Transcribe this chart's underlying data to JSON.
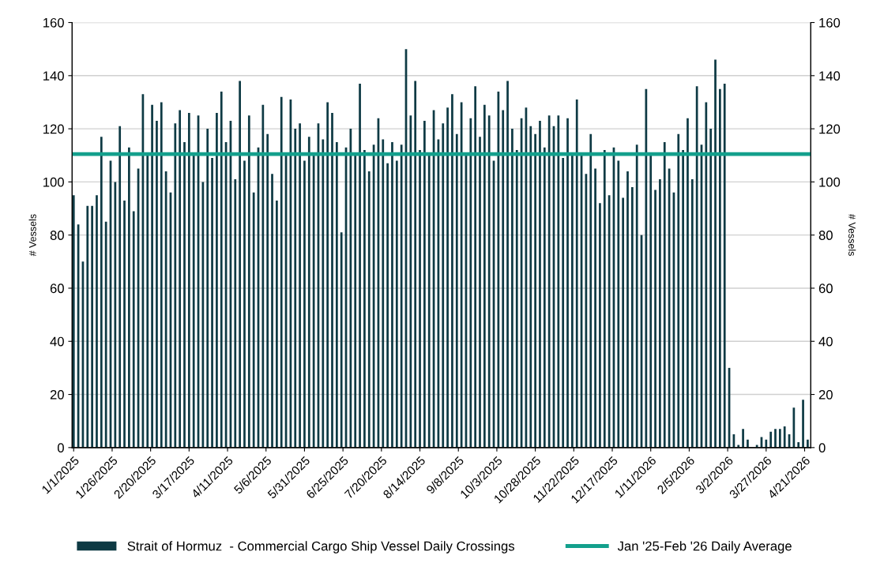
{
  "chart_data": {
    "type": "bar",
    "ylabel": "# Vessels",
    "y2label": "# Vessels",
    "x": [
      "2025-01-01",
      "2025-01-04",
      "2025-01-07",
      "2025-01-10",
      "2025-01-13",
      "2025-01-16",
      "2025-01-19",
      "2025-01-22",
      "2025-01-25",
      "2025-01-28",
      "2025-01-31",
      "2025-02-03",
      "2025-02-06",
      "2025-02-09",
      "2025-02-12",
      "2025-02-15",
      "2025-02-18",
      "2025-02-21",
      "2025-02-24",
      "2025-02-27",
      "2025-03-02",
      "2025-03-05",
      "2025-03-08",
      "2025-03-11",
      "2025-03-14",
      "2025-03-17",
      "2025-03-20",
      "2025-03-23",
      "2025-03-26",
      "2025-03-29",
      "2025-04-01",
      "2025-04-04",
      "2025-04-07",
      "2025-04-10",
      "2025-04-13",
      "2025-04-16",
      "2025-04-19",
      "2025-04-22",
      "2025-04-25",
      "2025-04-28",
      "2025-05-01",
      "2025-05-04",
      "2025-05-07",
      "2025-05-10",
      "2025-05-13",
      "2025-05-16",
      "2025-05-19",
      "2025-05-22",
      "2025-05-25",
      "2025-05-28",
      "2025-05-31",
      "2025-06-03",
      "2025-06-06",
      "2025-06-09",
      "2025-06-12",
      "2025-06-15",
      "2025-06-18",
      "2025-06-21",
      "2025-06-24",
      "2025-06-27",
      "2025-06-30",
      "2025-07-03",
      "2025-07-06",
      "2025-07-09",
      "2025-07-12",
      "2025-07-15",
      "2025-07-18",
      "2025-07-21",
      "2025-07-24",
      "2025-07-27",
      "2025-07-30",
      "2025-08-02",
      "2025-08-05",
      "2025-08-08",
      "2025-08-11",
      "2025-08-14",
      "2025-08-17",
      "2025-08-20",
      "2025-08-23",
      "2025-08-26",
      "2025-08-29",
      "2025-09-01",
      "2025-09-04",
      "2025-09-07",
      "2025-09-10",
      "2025-09-13",
      "2025-09-16",
      "2025-09-19",
      "2025-09-22",
      "2025-09-25",
      "2025-09-28",
      "2025-10-01",
      "2025-10-04",
      "2025-10-07",
      "2025-10-10",
      "2025-10-13",
      "2025-10-16",
      "2025-10-19",
      "2025-10-22",
      "2025-10-25",
      "2025-10-28",
      "2025-10-31",
      "2025-11-03",
      "2025-11-06",
      "2025-11-09",
      "2025-11-12",
      "2025-11-15",
      "2025-11-18",
      "2025-11-21",
      "2025-11-24",
      "2025-11-27",
      "2025-11-30",
      "2025-12-03",
      "2025-12-06",
      "2025-12-09",
      "2025-12-12",
      "2025-12-15",
      "2025-12-18",
      "2025-12-21",
      "2025-12-24",
      "2025-12-27",
      "2025-12-30",
      "2026-01-02",
      "2026-01-05",
      "2026-01-08",
      "2026-01-11",
      "2026-01-14",
      "2026-01-17",
      "2026-01-20",
      "2026-01-23",
      "2026-01-26",
      "2026-01-29",
      "2026-02-01",
      "2026-02-04",
      "2026-02-07",
      "2026-02-10",
      "2026-02-13",
      "2026-02-16",
      "2026-02-19",
      "2026-02-22",
      "2026-02-25",
      "2026-02-28",
      "2026-03-03",
      "2026-03-06",
      "2026-03-09",
      "2026-03-12",
      "2026-03-15",
      "2026-03-18",
      "2026-03-21",
      "2026-03-24",
      "2026-03-27",
      "2026-03-30",
      "2026-04-02",
      "2026-04-05",
      "2026-04-08",
      "2026-04-11",
      "2026-04-14",
      "2026-04-17",
      "2026-04-20",
      "2026-04-23"
    ],
    "series": [
      {
        "name": "Strait of Hormuz  - Commercial Cargo Ship Vessel Daily Crossings",
        "color": "#0e3a44",
        "values": [
          95,
          84,
          70,
          91,
          91,
          95,
          117,
          85,
          108,
          100,
          121,
          93,
          113,
          89,
          105,
          133,
          110,
          129,
          123,
          130,
          104,
          96,
          122,
          127,
          115,
          126,
          110,
          125,
          100,
          120,
          109,
          126,
          134,
          115,
          123,
          101,
          138,
          108,
          125,
          96,
          113,
          129,
          118,
          103,
          93,
          132,
          110,
          131,
          120,
          122,
          108,
          117,
          111,
          122,
          116,
          130,
          126,
          115,
          81,
          113,
          120,
          110,
          137,
          112,
          104,
          114,
          124,
          116,
          107,
          115,
          108,
          114,
          150,
          125,
          138,
          112,
          123,
          110,
          127,
          116,
          122,
          128,
          133,
          118,
          130,
          110,
          124,
          136,
          117,
          129,
          125,
          108,
          134,
          127,
          138,
          120,
          112,
          124,
          128,
          121,
          118,
          123,
          113,
          125,
          121,
          125,
          109,
          124,
          110,
          131,
          110,
          103,
          118,
          105,
          92,
          112,
          95,
          113,
          108,
          94,
          104,
          98,
          114,
          80,
          135,
          110,
          97,
          101,
          115,
          105,
          96,
          118,
          112,
          124,
          101,
          136,
          114,
          130,
          120,
          146,
          135,
          137,
          30,
          5,
          1,
          7,
          3,
          0,
          1,
          4,
          3,
          6,
          7,
          7,
          8,
          5,
          15,
          2,
          18,
          3
        ]
      }
    ],
    "ref_lines": [
      {
        "axis": "y",
        "value": 110.5,
        "label": "Jan '25-Feb '26 Daily Average",
        "color": "#13a08c"
      }
    ],
    "xlim": [
      "2024-12-31",
      "2026-04-25"
    ],
    "xticks": [
      {
        "value": "2025-01-01",
        "label": "1/1/2025"
      },
      {
        "value": "2025-01-26",
        "label": "1/26/2025"
      },
      {
        "value": "2025-02-20",
        "label": "2/20/2025"
      },
      {
        "value": "2025-03-17",
        "label": "3/17/2025"
      },
      {
        "value": "2025-04-11",
        "label": "4/11/2025"
      },
      {
        "value": "2025-05-06",
        "label": "5/6/2025"
      },
      {
        "value": "2025-05-31",
        "label": "5/31/2025"
      },
      {
        "value": "2025-06-25",
        "label": "6/25/2025"
      },
      {
        "value": "2025-07-20",
        "label": "7/20/2025"
      },
      {
        "value": "2025-08-14",
        "label": "8/14/2025"
      },
      {
        "value": "2025-09-08",
        "label": "9/8/2025"
      },
      {
        "value": "2025-10-03",
        "label": "10/3/2025"
      },
      {
        "value": "2025-10-28",
        "label": "10/28/2025"
      },
      {
        "value": "2025-11-22",
        "label": "11/22/2025"
      },
      {
        "value": "2025-12-17",
        "label": "12/17/2025"
      },
      {
        "value": "2026-01-11",
        "label": "1/11/2026"
      },
      {
        "value": "2026-02-05",
        "label": "2/5/2026"
      },
      {
        "value": "2026-03-02",
        "label": "3/2/2026"
      },
      {
        "value": "2026-03-27",
        "label": "3/27/2026"
      },
      {
        "value": "2026-04-21",
        "label": "4/21/2026"
      }
    ],
    "ylim": [
      0,
      160
    ],
    "yticks": [
      0,
      20,
      40,
      60,
      80,
      100,
      120,
      140,
      160
    ],
    "y2lim": [
      0,
      160
    ],
    "y2ticks": [
      0,
      20,
      40,
      60,
      80,
      100,
      120,
      140,
      160
    ],
    "grid": "y",
    "legend": "bottom"
  }
}
